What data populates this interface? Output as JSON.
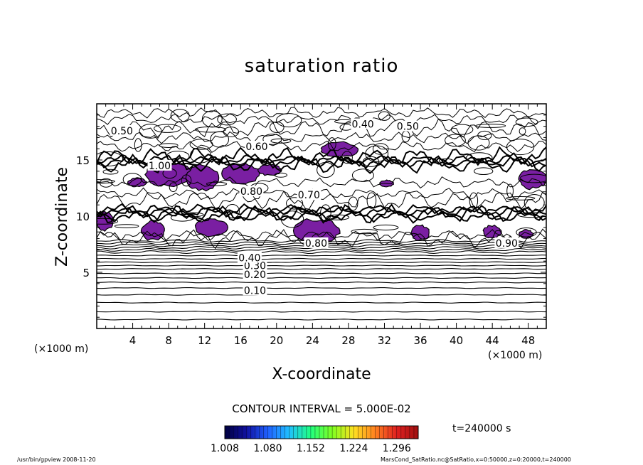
{
  "chart_data": {
    "type": "contour",
    "title": "saturation ratio",
    "xlabel": "X-coordinate",
    "ylabel": "Z-coordinate",
    "x_unit_label": "(×1000 m)",
    "y_unit_label": "(×1000 m)",
    "xlim": [
      0,
      50
    ],
    "ylim": [
      0,
      20
    ],
    "x_ticks": [
      4,
      8,
      12,
      16,
      20,
      24,
      28,
      32,
      36,
      40,
      44,
      48
    ],
    "y_ticks": [
      5,
      10,
      15
    ],
    "contour_interval_text": "CONTOUR INTERVAL = 5.000E-02",
    "contour_interval": 0.05,
    "time_label": "t=240000  s",
    "shaded_threshold": 1.0,
    "shade_color": "#7a1fa2",
    "contour_labels": [
      {
        "text": "0.10",
        "x": 17.6,
        "z": 3.4
      },
      {
        "text": "0.20",
        "x": 17.6,
        "z": 4.8
      },
      {
        "text": "0.30",
        "x": 17.6,
        "z": 5.6
      },
      {
        "text": "0.40",
        "x": 17.0,
        "z": 6.3
      },
      {
        "text": "0.50",
        "x": 2.8,
        "z": 17.6
      },
      {
        "text": "0.50",
        "x": 34.6,
        "z": 18.0
      },
      {
        "text": "0.40",
        "x": 29.6,
        "z": 18.2
      },
      {
        "text": "0.60",
        "x": 17.8,
        "z": 16.2
      },
      {
        "text": "1.00",
        "x": 7.0,
        "z": 14.5
      },
      {
        "text": "0.80",
        "x": 17.2,
        "z": 12.2
      },
      {
        "text": "0.70",
        "x": 23.6,
        "z": 11.9
      },
      {
        "text": "0.90",
        "x": 45.6,
        "z": 7.6
      },
      {
        "text": "0.80",
        "x": 24.4,
        "z": 7.6
      }
    ],
    "contour_levels_z": [
      0.8,
      1.5,
      2.3,
      3.0,
      3.6,
      4.1,
      4.5,
      4.9,
      5.3,
      5.6,
      5.9,
      6.2,
      6.5,
      6.8,
      7.0,
      7.2,
      7.4,
      7.6,
      7.8
    ],
    "saturated_regions": [
      {
        "x0": 5.5,
        "x1": 10.5,
        "z0": 12.6,
        "z1": 14.8
      },
      {
        "x0": 10.0,
        "x1": 13.5,
        "z0": 12.2,
        "z1": 14.6
      },
      {
        "x0": 14.0,
        "x1": 18.0,
        "z0": 12.8,
        "z1": 14.8
      },
      {
        "x0": 18.0,
        "x1": 20.5,
        "z0": 13.6,
        "z1": 14.6
      },
      {
        "x0": 3.5,
        "x1": 5.5,
        "z0": 12.6,
        "z1": 13.4
      },
      {
        "x0": 25.0,
        "x1": 29.0,
        "z0": 15.2,
        "z1": 16.6
      },
      {
        "x0": 31.5,
        "x1": 33.0,
        "z0": 12.6,
        "z1": 13.2
      },
      {
        "x0": 47.0,
        "x1": 50.0,
        "z0": 12.4,
        "z1": 14.2
      },
      {
        "x0": 0.0,
        "x1": 1.8,
        "z0": 8.7,
        "z1": 10.4
      },
      {
        "x0": 5.0,
        "x1": 7.5,
        "z0": 7.8,
        "z1": 9.6
      },
      {
        "x0": 11.0,
        "x1": 14.5,
        "z0": 8.2,
        "z1": 9.8
      },
      {
        "x0": 22.0,
        "x1": 27.0,
        "z0": 7.6,
        "z1": 9.8
      },
      {
        "x0": 35.0,
        "x1": 37.0,
        "z0": 7.8,
        "z1": 9.2
      },
      {
        "x0": 43.0,
        "x1": 45.0,
        "z0": 8.0,
        "z1": 9.2
      },
      {
        "x0": 47.0,
        "x1": 48.5,
        "z0": 8.0,
        "z1": 8.8
      }
    ],
    "colorbar": {
      "min": 1.008,
      "max": 1.332,
      "tick_labels": [
        "1.008",
        "1.080",
        "1.152",
        "1.224",
        "1.296"
      ],
      "tick_values": [
        1.008,
        1.08,
        1.152,
        1.224,
        1.296
      ],
      "gradient_colors": [
        "#000040",
        "#1010a0",
        "#2060ff",
        "#20c0ff",
        "#20ff80",
        "#80ff20",
        "#ffe020",
        "#ff8020",
        "#e02020",
        "#a01010"
      ]
    }
  },
  "footer_left": "/usr/bin/gpview   2008-11-20",
  "footer_right": "MarsCond_SatRatio.nc@SatRatio,x=0:50000,z=0:20000,t=240000"
}
